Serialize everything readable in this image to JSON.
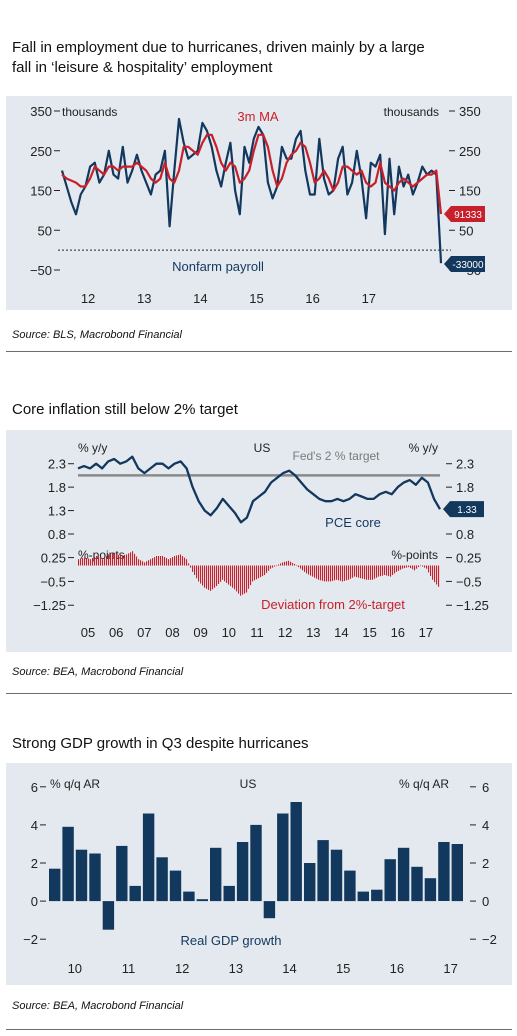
{
  "colors": {
    "navy": "#13385e",
    "red": "#c8202a",
    "grey": "#8a8a8a",
    "bg": "#e4e9ef"
  },
  "panels": [
    {
      "title_line1": "Fall in employment due to hurricanes, driven mainly by a large",
      "title_line2": "fall in ‘leisure & hospitality’ employment",
      "source": "Source: BLS, Macrobond Financial"
    },
    {
      "title_line1": "Core inflation still below 2% target",
      "source": "Source: BEA, Macrobond Financial"
    },
    {
      "title_line1": "Strong GDP growth in Q3 despite hurricanes",
      "source": "Source: BEA, Macrobond Financial"
    }
  ],
  "chart_data": [
    {
      "type": "line",
      "units_left": "thousands",
      "units_right": "thousands",
      "yticks": [
        350,
        250,
        150,
        50,
        -50
      ],
      "ylim": [
        -50,
        350
      ],
      "x_ticks": [
        "12",
        "13",
        "14",
        "15",
        "16",
        "17"
      ],
      "x_start": 2012.0,
      "x_end": 2017.83,
      "annotations": {
        "ma_label": "3m MA",
        "payroll_label": "Nonfarm payroll"
      },
      "end_labels": {
        "ma": "91333",
        "payroll": "-33000"
      },
      "series": [
        {
          "name": "Nonfarm payroll",
          "values": [
            200,
            160,
            120,
            90,
            140,
            160,
            210,
            220,
            170,
            190,
            250,
            190,
            180,
            260,
            170,
            200,
            240,
            200,
            170,
            140,
            190,
            200,
            250,
            60,
            200,
            330,
            270,
            230,
            240,
            250,
            320,
            300,
            260,
            200,
            160,
            220,
            270,
            150,
            90,
            260,
            220,
            280,
            310,
            290,
            170,
            130,
            160,
            260,
            230,
            230,
            280,
            300,
            200,
            140,
            140,
            280,
            180,
            140,
            150,
            230,
            260,
            140,
            170,
            250,
            180,
            80,
            220,
            210,
            240,
            40,
            230,
            90,
            210,
            160,
            190,
            140,
            170,
            210,
            190,
            200,
            190,
            -33
          ]
        },
        {
          "name": "3m MA",
          "values": [
            190,
            180,
            175,
            170,
            160,
            160,
            180,
            210,
            200,
            190,
            210,
            210,
            200,
            210,
            210,
            210,
            220,
            210,
            200,
            180,
            170,
            180,
            220,
            180,
            170,
            200,
            260,
            260,
            250,
            240,
            270,
            290,
            290,
            260,
            220,
            200,
            220,
            210,
            170,
            180,
            200,
            250,
            290,
            290,
            260,
            200,
            160,
            180,
            220,
            240,
            250,
            270,
            260,
            220,
            170,
            180,
            200,
            180,
            150,
            170,
            210,
            210,
            200,
            190,
            200,
            170,
            160,
            170,
            220,
            170,
            160,
            150,
            170,
            180,
            170,
            160,
            170,
            180,
            190,
            190,
            200,
            91
          ]
        }
      ]
    },
    {
      "type": "line",
      "region": "US",
      "units_left": "% y/y",
      "units_right": "% y/y",
      "yticks": [
        2.3,
        1.8,
        1.3,
        0.8
      ],
      "ylim": [
        0.8,
        2.55
      ],
      "target_value": 2.05,
      "target_label": "Fed's 2 % target",
      "series_label": "PCE core",
      "end_label": "1.33",
      "x_ticks": [
        "05",
        "06",
        "07",
        "08",
        "09",
        "10",
        "11",
        "12",
        "13",
        "14",
        "15",
        "16",
        "17"
      ],
      "x_start": 2004.75,
      "x_end": 2017.67,
      "series": [
        {
          "name": "PCE core",
          "quarterly_values": [
            2.2,
            2.25,
            2.2,
            2.3,
            2.2,
            2.35,
            2.4,
            2.3,
            2.35,
            2.45,
            2.2,
            2.1,
            2.2,
            2.3,
            2.3,
            2.2,
            2.3,
            2.35,
            2.2,
            1.8,
            1.5,
            1.3,
            1.2,
            1.35,
            1.55,
            1.4,
            1.25,
            1.05,
            1.15,
            1.5,
            1.6,
            1.7,
            1.9,
            2.0,
            2.1,
            2.15,
            2.05,
            1.9,
            1.75,
            1.65,
            1.55,
            1.5,
            1.5,
            1.55,
            1.5,
            1.55,
            1.65,
            1.6,
            1.55,
            1.55,
            1.65,
            1.7,
            1.65,
            1.8,
            1.9,
            1.95,
            1.85,
            2.0,
            1.9,
            1.55,
            1.33
          ]
        }
      ]
    },
    {
      "type": "bar",
      "units_left": "%-points",
      "units_right": "%-points",
      "yticks": [
        0.25,
        -0.5,
        -1.25
      ],
      "ylim": [
        -1.4,
        0.3
      ],
      "series_label": "Deviation from 2%-target",
      "x_ticks": [
        "05",
        "06",
        "07",
        "08",
        "09",
        "10",
        "11",
        "12",
        "13",
        "14",
        "15",
        "16",
        "17"
      ],
      "series": [
        {
          "name": "Deviation from 2%-target",
          "derived_from": "PCE core minus 2"
        }
      ]
    },
    {
      "type": "bar",
      "region": "US",
      "units_left": "% q/q AR",
      "units_right": "% q/q AR",
      "yticks": [
        6,
        4,
        2,
        0,
        -2
      ],
      "ylim": [
        -2.2,
        6.2
      ],
      "series_label": "Real GDP growth",
      "x_ticks": [
        "10",
        "11",
        "12",
        "13",
        "14",
        "15",
        "16",
        "17"
      ],
      "series": [
        {
          "name": "Real GDP growth",
          "values": [
            1.7,
            3.9,
            2.7,
            2.5,
            -1.5,
            2.9,
            0.8,
            4.6,
            2.3,
            1.6,
            0.5,
            0.1,
            2.8,
            0.8,
            3.1,
            4.0,
            -0.9,
            4.6,
            5.2,
            2.0,
            3.2,
            2.7,
            1.6,
            0.5,
            0.6,
            2.2,
            2.8,
            1.8,
            1.2,
            3.1,
            3.0
          ]
        }
      ]
    }
  ]
}
